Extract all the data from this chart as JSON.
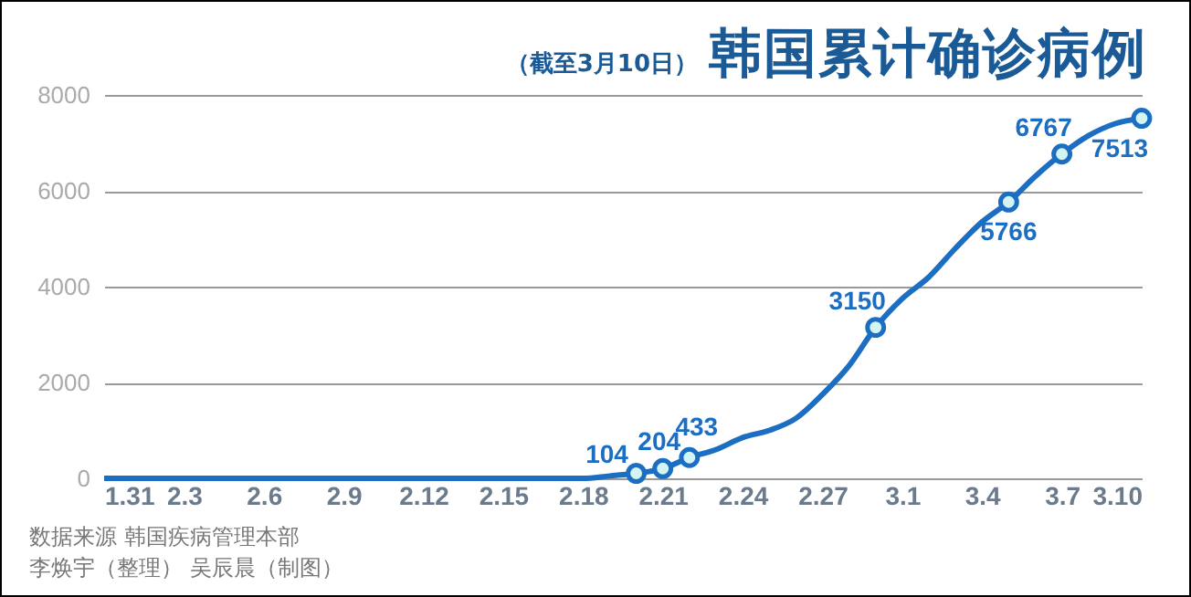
{
  "chart_data": {
    "type": "line",
    "title": "韩国累计确诊病例",
    "subtitle": "（截至3月10日）",
    "annotations": [
      "数据来源 韩国疾病管理本部",
      "李焕宇（整理） 吴辰晨（制图）"
    ],
    "x": [
      "--01-31",
      "--02-01",
      "--02-02",
      "--02-04",
      "--02-05",
      "--02-06",
      "--02-09",
      "--02-10",
      "--02-11",
      "--02-16",
      "--02-17",
      "--02-18",
      "--02-19",
      "--02-20",
      "--02-21",
      "--02-22",
      "--02-23",
      "--02-24",
      "--02-25",
      "--02-26",
      "--02-27",
      "--02-28",
      "--02-29",
      "--03-01",
      "--03-02",
      "--03-03",
      "--03-04",
      "--03-05",
      "--03-06",
      "--03-07",
      "--03-08",
      "--03-09",
      "--03-10"
    ],
    "series": [
      {
        "color": "#1b6ec2",
        "marker": "none",
        "values": [
          0,
          0,
          0,
          0,
          0,
          0,
          0,
          0,
          0,
          0,
          0,
          0,
          50,
          104,
          204,
          433,
          600,
          850,
          1000,
          1250,
          1750,
          2350,
          3150,
          3750,
          4200,
          4800,
          5350,
          5766,
          6300,
          6767,
          7150,
          7400,
          7513
        ]
      },
      {
        "type": "scatter",
        "color": "#1b6ec2",
        "marker": "circle",
        "x": [
          "--02-20",
          "--02-21",
          "--02-22",
          "--02-29",
          "--03-05",
          "--03-07",
          "--03-10"
        ],
        "values": [
          104,
          204,
          433,
          3150,
          5766,
          6767,
          7513
        ],
        "value_labels": [
          "104",
          "204",
          "433",
          "3150",
          "5766",
          "6767",
          "7513"
        ]
      }
    ],
    "xlim": [
      "--01-31",
      "--03-10"
    ],
    "xticks": [
      {
        "value": "--01-31",
        "label": "1.31"
      },
      {
        "value": "--02-03",
        "label": "2.3"
      },
      {
        "value": "--02-06",
        "label": "2.6"
      },
      {
        "value": "--02-09",
        "label": "2.9"
      },
      {
        "value": "--02-12",
        "label": "2.12"
      },
      {
        "value": "--02-15",
        "label": "2.15"
      },
      {
        "value": "--02-18",
        "label": "2.18"
      },
      {
        "value": "--02-21",
        "label": "2.21"
      },
      {
        "value": "--02-24",
        "label": "2.24"
      },
      {
        "value": "--02-27",
        "label": "2.27"
      },
      {
        "value": "--03-01",
        "label": "3.1"
      },
      {
        "value": "--03-04",
        "label": "3.4"
      },
      {
        "value": "--03-07",
        "label": "3.7"
      },
      {
        "value": "--03-10",
        "label": "3.10"
      }
    ],
    "ylim": [
      0,
      8000
    ],
    "yticks": [
      0,
      2000,
      4000,
      6000,
      8000
    ],
    "grid": "y",
    "line_style": "solid"
  }
}
